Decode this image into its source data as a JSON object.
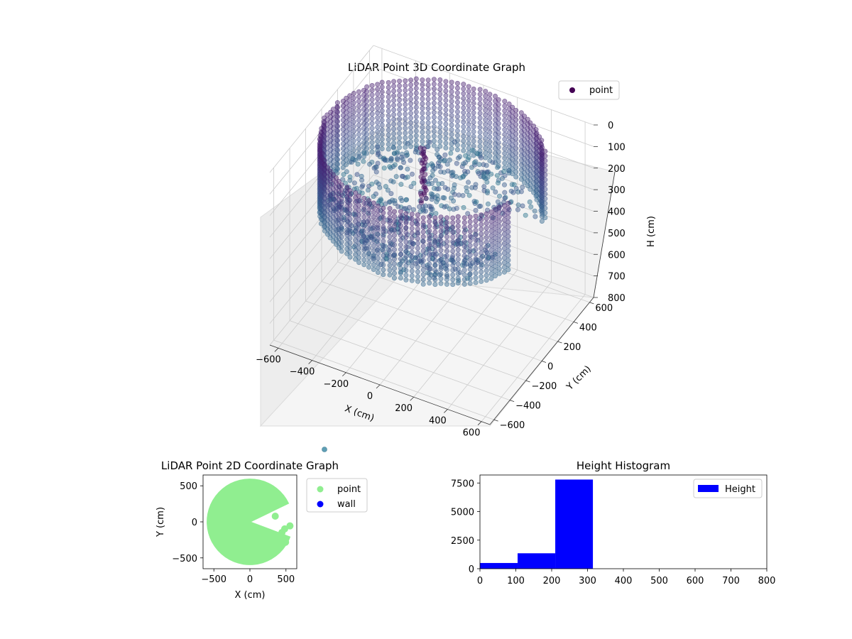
{
  "chart_data": [
    {
      "type": "scatter",
      "title": "LiDAR Point 3D Coordinate Graph",
      "xlabel": "X (cm)",
      "ylabel": "Y (cm)",
      "zlabel": "H (cm)",
      "xticks": [
        "−600",
        "−400",
        "−200",
        "0",
        "200",
        "400",
        "600"
      ],
      "yticks": [
        "−600",
        "−400",
        "−200",
        "0",
        "200",
        "400",
        "600"
      ],
      "zticks": [
        "0",
        "100",
        "200",
        "300",
        "400",
        "500",
        "600",
        "700",
        "800"
      ],
      "xlim": [
        -650,
        650
      ],
      "ylim": [
        -650,
        650
      ],
      "zlim": [
        0,
        800
      ],
      "z_axis_inverted": true,
      "grid": true,
      "colormap": "viridis",
      "legend": {
        "location": "upper-right",
        "entries": [
          {
            "label": "point",
            "color": "#440154"
          }
        ]
      },
      "series": [
        {
          "name": "point",
          "shape": "ring-shaped point cloud of a round room",
          "wall_radius_cm": 600,
          "height_range_cm": [
            0,
            320
          ],
          "missing_sector_deg": [
            -20,
            25
          ]
        }
      ]
    },
    {
      "type": "scatter",
      "title": "LiDAR Point 2D Coordinate Graph",
      "xlabel": "X (cm)",
      "ylabel": "Y (cm)",
      "xticks": [
        "−500",
        "0",
        "500"
      ],
      "yticks": [
        "500",
        "0",
        "−500"
      ],
      "xlim": [
        -650,
        650
      ],
      "ylim": [
        -650,
        650
      ],
      "legend": {
        "location": "outside-right",
        "entries": [
          {
            "label": "point",
            "color": "#90ee90"
          },
          {
            "label": "wall",
            "color": "#0000ff"
          }
        ]
      },
      "series": [
        {
          "name": "point",
          "color": "#90ee90",
          "radius_cm": 600,
          "missing_sector_deg": [
            -20,
            25
          ]
        },
        {
          "name": "wall",
          "color": "#0000ff",
          "values": []
        }
      ]
    },
    {
      "type": "bar",
      "title": "Height Histogram",
      "xticks": [
        "0",
        "100",
        "200",
        "300",
        "400",
        "500",
        "600",
        "700",
        "800"
      ],
      "yticks": [
        "0",
        "2500",
        "5000",
        "7500"
      ],
      "xlim": [
        0,
        800
      ],
      "ylim": [
        0,
        8200
      ],
      "legend": {
        "location": "top-right",
        "entries": [
          {
            "label": "Height",
            "color": "#0000ff"
          }
        ]
      },
      "series": [
        {
          "name": "Height",
          "color": "#0000ff",
          "bins": [
            {
              "x0": 0,
              "x1": 105,
              "count": 500
            },
            {
              "x0": 105,
              "x1": 210,
              "count": 1350
            },
            {
              "x0": 210,
              "x1": 315,
              "count": 7800
            }
          ]
        }
      ]
    }
  ]
}
